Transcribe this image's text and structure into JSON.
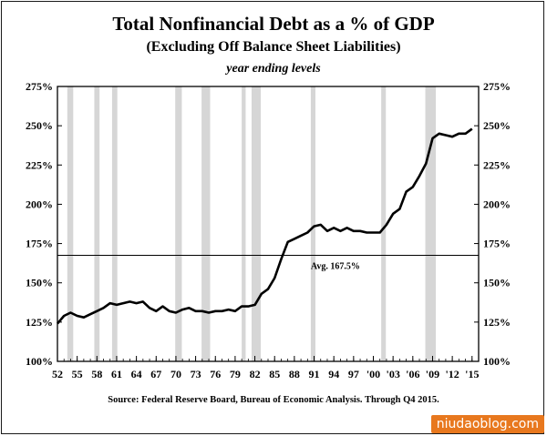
{
  "header": {
    "title": "Total Nonfinancial Debt as a % of GDP",
    "subtitle": "(Excluding Off Balance Sheet Liabilities)",
    "subsubtitle": "year ending levels"
  },
  "footer": {
    "source": "Source:  Federal Reserve Board, Bureau of Economic Analysis.  Through Q4 2015.",
    "watermark": "niudaoblog.com"
  },
  "chart_data": {
    "type": "line",
    "title": "Total Nonfinancial Debt as a % of GDP",
    "subtitle": "(Excluding Off Balance Sheet Liabilities)",
    "note": "year ending levels",
    "source": "Source:  Federal Reserve Board, Bureau of Economic Analysis.  Through Q4 2015.",
    "xlim": [
      1952,
      2016
    ],
    "ylim": [
      100,
      275
    ],
    "x_ticks": [
      1952,
      1955,
      1958,
      1961,
      1964,
      1967,
      1970,
      1973,
      1976,
      1979,
      1982,
      1985,
      1988,
      1991,
      1994,
      1997,
      2000,
      2003,
      2006,
      2009,
      2012,
      2015
    ],
    "x_tick_labels": [
      "52",
      "55",
      "58",
      "61",
      "64",
      "67",
      "70",
      "73",
      "76",
      "79",
      "82",
      "85",
      "88",
      "91",
      "94",
      "97",
      "'00",
      "'03",
      "'06",
      "'09",
      "'12",
      "'15"
    ],
    "y_ticks": [
      100,
      125,
      150,
      175,
      200,
      225,
      250,
      275
    ],
    "y_tick_labels": [
      "100%",
      "125%",
      "150%",
      "175%",
      "200%",
      "225%",
      "250%",
      "275%"
    ],
    "y_axes": [
      "left",
      "right"
    ],
    "grid": false,
    "recessions": [
      [
        1953.5,
        1954.4
      ],
      [
        1957.6,
        1958.4
      ],
      [
        1960.3,
        1961.1
      ],
      [
        1969.9,
        1970.9
      ],
      [
        1973.9,
        1975.2
      ],
      [
        1980.0,
        1980.6
      ],
      [
        1981.5,
        1982.9
      ],
      [
        1990.5,
        1991.2
      ],
      [
        2001.2,
        2001.9
      ],
      [
        2007.9,
        2009.5
      ]
    ],
    "recession_color": "#d6d6d6",
    "average": {
      "value": 167.5,
      "label": "Avg. 167.5%"
    },
    "x": [
      1952,
      1953,
      1954,
      1955,
      1956,
      1957,
      1958,
      1959,
      1960,
      1961,
      1962,
      1963,
      1964,
      1965,
      1966,
      1967,
      1968,
      1969,
      1970,
      1971,
      1972,
      1973,
      1974,
      1975,
      1976,
      1977,
      1978,
      1979,
      1980,
      1981,
      1982,
      1983,
      1984,
      1985,
      1986,
      1987,
      1988,
      1989,
      1990,
      1991,
      1992,
      1993,
      1994,
      1995,
      1996,
      1997,
      1998,
      1999,
      2000,
      2001,
      2002,
      2003,
      2004,
      2005,
      2006,
      2007,
      2008,
      2009,
      2010,
      2011,
      2012,
      2013,
      2014,
      2015
    ],
    "series": [
      {
        "values": [
          124,
          129,
          131,
          129,
          128,
          130,
          132,
          134,
          137,
          136,
          137,
          138,
          137,
          138,
          134,
          132,
          135,
          132,
          131,
          133,
          134,
          132,
          132,
          131,
          132,
          132,
          133,
          132,
          135,
          135,
          136,
          143,
          146,
          153,
          165,
          176,
          178,
          180,
          182,
          186,
          187,
          183,
          185,
          183,
          185,
          183,
          183,
          182,
          182,
          182,
          187,
          194,
          197,
          208,
          211,
          218,
          226,
          242,
          245,
          244,
          243,
          245,
          245,
          248
        ],
        "color": "#000000"
      }
    ]
  }
}
